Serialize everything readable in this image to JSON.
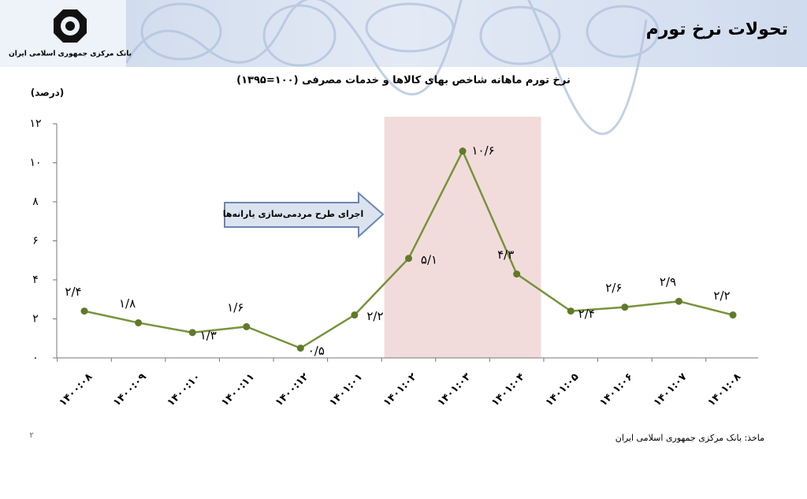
{
  "header": {
    "title": "تحولات نرخ تورم",
    "bank": "بانک مرکزی جمهوری اسلامی ایران"
  },
  "chart_data": {
    "type": "line",
    "title": "نرخ تورم ماهانه شاخص بهای کالاها و خدمات مصرفی (۱۰۰=۱۳۹۵)",
    "y_label": "(درصد)",
    "categories": [
      "۱۴۰۰:۰۸",
      "۱۴۰۰:۰۹",
      "۱۴۰۰:۱۰",
      "۱۴۰۰:۱۱",
      "۱۴۰۰:۱۲",
      "۱۴۰۱:۰۱",
      "۱۴۰۱:۰۲",
      "۱۴۰۱:۰۳",
      "۱۴۰۱:۰۴",
      "۱۴۰۱:۰۵",
      "۱۴۰۱:۰۶",
      "۱۴۰۱:۰۷",
      "۱۴۰۱:۰۸"
    ],
    "values": [
      2.4,
      1.8,
      1.3,
      1.6,
      0.5,
      2.2,
      5.1,
      10.6,
      4.3,
      2.4,
      2.6,
      2.9,
      2.2
    ],
    "value_labels": [
      "۲/۴",
      "۱/۸",
      "۱/۳",
      "۱/۶",
      "۰/۵",
      "۲/۲",
      "۵/۱",
      "۱۰/۶",
      "۴/۳",
      "۲/۴",
      "۲/۶",
      "۲/۹",
      "۲/۲"
    ],
    "color": "#77933c",
    "ylim": [
      0,
      12
    ],
    "yticks": [
      {
        "value": 0,
        "label": "۰"
      },
      {
        "value": 2,
        "label": "۲"
      },
      {
        "value": 4,
        "label": "۴"
      },
      {
        "value": 6,
        "label": "۶"
      },
      {
        "value": 8,
        "label": "۸"
      },
      {
        "value": 10,
        "label": "۱۰"
      },
      {
        "value": 12,
        "label": "۱۲"
      }
    ],
    "highlight": [
      "۱۴۰۱:۰۲",
      "۱۴۰۱:۰۴"
    ],
    "annotation": "اجرای طرح مردمی‌سازی یارانه‌ها"
  },
  "footer": {
    "source": "ماخذ: بانک مرکزی جمهوری اسلامی ایران",
    "page_number": "۲"
  }
}
